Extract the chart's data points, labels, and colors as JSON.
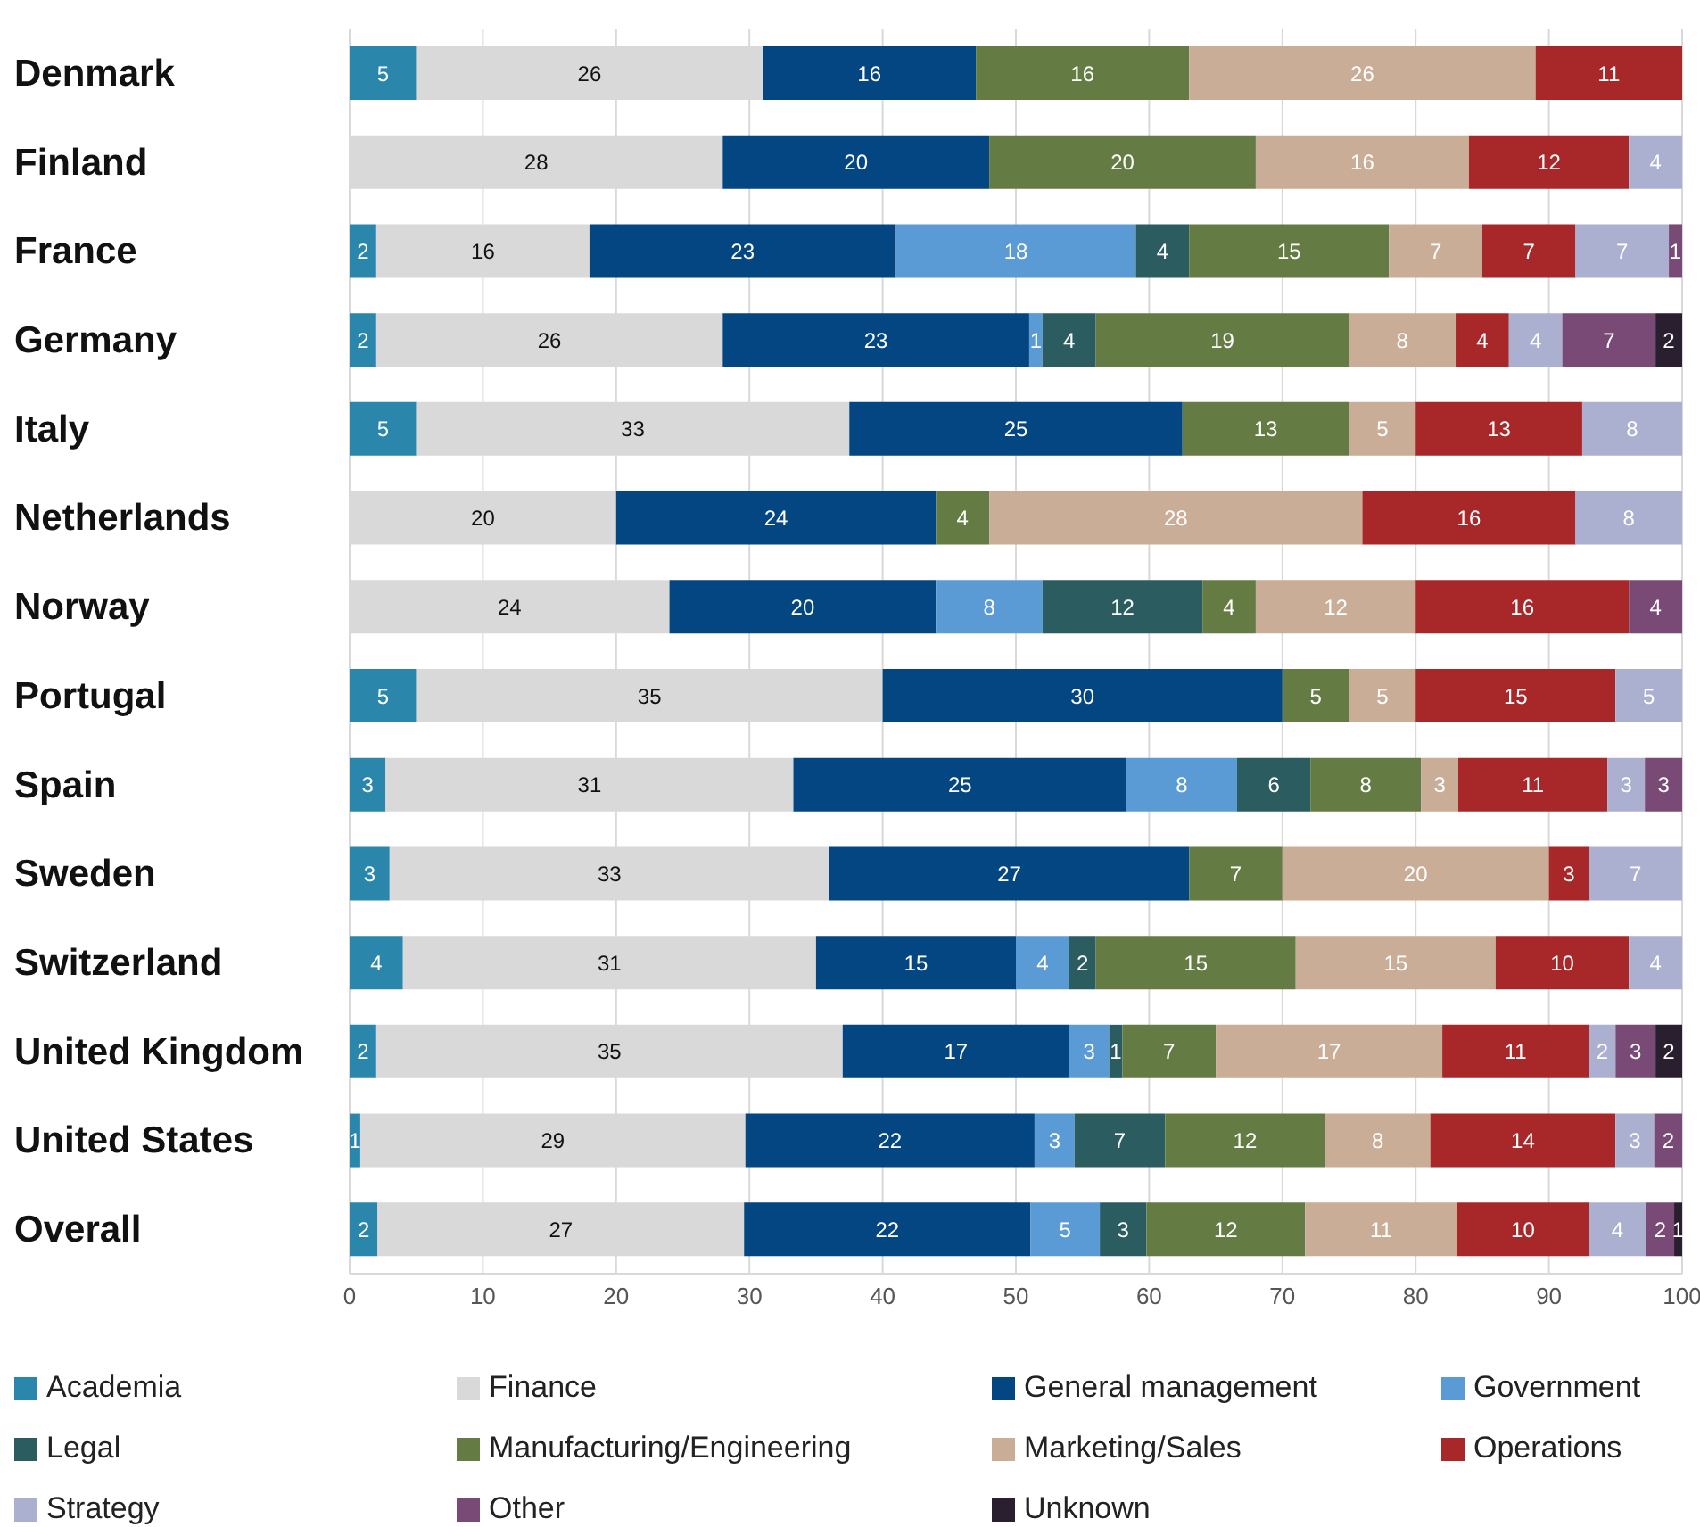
{
  "chart_data": {
    "type": "bar",
    "orientation": "horizontal",
    "stacked": true,
    "categories": [
      "Denmark",
      "Finland",
      "France",
      "Germany",
      "Italy",
      "Netherlands",
      "Norway",
      "Portugal",
      "Spain",
      "Sweden",
      "Switzerland",
      "United Kingdom",
      "United States",
      "Overall"
    ],
    "series": [
      {
        "name": "Academia",
        "color": "#2a87ab",
        "values": [
          5,
          null,
          2,
          2,
          5,
          null,
          null,
          5,
          2.7,
          3,
          4,
          2,
          0.8,
          2.1
        ],
        "value_labels": [
          "5",
          null,
          "2",
          "2",
          "5",
          null,
          null,
          "5",
          "3",
          "3",
          "4",
          "2",
          "1",
          "2"
        ]
      },
      {
        "name": "Finance",
        "color": "#d9d9d9",
        "values": [
          26,
          28,
          16,
          26,
          32.5,
          20,
          24,
          35,
          30.6,
          33,
          31,
          35,
          28.9,
          27.5
        ],
        "value_labels": [
          "26",
          "28",
          "16",
          "26",
          "33",
          "20",
          "24",
          "35",
          "31",
          "33",
          "31",
          "35",
          "29",
          "27"
        ]
      },
      {
        "name": "General management",
        "color": "#034681",
        "values": [
          16,
          20,
          23,
          23,
          25,
          24,
          20,
          30,
          25,
          27,
          15,
          17,
          21.7,
          21.5
        ],
        "value_labels": [
          "16",
          "20",
          "23",
          "23",
          "25",
          "24",
          "20",
          "30",
          "25",
          "27",
          "15",
          "17",
          "22",
          "22"
        ]
      },
      {
        "name": "Government",
        "color": "#5b9bd5",
        "values": [
          null,
          null,
          18,
          1,
          null,
          null,
          8,
          null,
          8.3,
          null,
          4,
          3,
          3.0,
          5.2
        ],
        "value_labels": [
          null,
          null,
          "18",
          "1",
          null,
          null,
          "8",
          null,
          "8",
          null,
          "4",
          "3",
          "3",
          "5"
        ]
      },
      {
        "name": "Legal",
        "color": "#2a5c60",
        "values": [
          null,
          null,
          4,
          4,
          null,
          null,
          12,
          null,
          5.5,
          null,
          2,
          1,
          6.8,
          3.5
        ],
        "value_labels": [
          null,
          null,
          "4",
          "4",
          null,
          null,
          "12",
          null,
          "6",
          null,
          "2",
          "1",
          "7",
          "3"
        ]
      },
      {
        "name": "Manufacturing/Engineering",
        "color": "#647c43",
        "values": [
          16,
          20,
          15,
          19,
          12.5,
          4,
          4,
          5,
          8.3,
          7,
          15,
          7,
          12.0,
          11.9
        ],
        "value_labels": [
          "16",
          "20",
          "15",
          "19",
          "13",
          "4",
          "4",
          "5",
          "8",
          "7",
          "15",
          "7",
          "12",
          "12"
        ]
      },
      {
        "name": "Marketing/Sales",
        "color": "#c9ad97",
        "values": [
          26,
          16,
          7,
          8,
          5,
          28,
          12,
          5,
          2.8,
          20,
          15,
          17,
          7.9,
          11.4
        ],
        "value_labels": [
          "26",
          "16",
          "7",
          "8",
          "5",
          "28",
          "12",
          "5",
          "3",
          "20",
          "15",
          "17",
          "8",
          "11"
        ]
      },
      {
        "name": "Operations",
        "color": "#a8282a",
        "values": [
          11,
          12,
          7,
          4,
          12.5,
          16,
          16,
          15,
          11.2,
          3,
          10,
          11,
          13.9,
          9.9
        ],
        "value_labels": [
          "11",
          "12",
          "7",
          "4",
          "13",
          "16",
          "16",
          "15",
          "11",
          "3",
          "10",
          "11",
          "14",
          "10"
        ]
      },
      {
        "name": "Strategy",
        "color": "#abb0d0",
        "values": [
          null,
          4,
          7,
          4,
          7.5,
          8,
          null,
          5,
          2.8,
          7,
          4,
          2,
          2.9,
          4.3
        ],
        "value_labels": [
          null,
          "4",
          "7",
          "4",
          "8",
          "8",
          null,
          "5",
          "3",
          "7",
          "4",
          "2",
          "3",
          "4"
        ]
      },
      {
        "name": "Other",
        "color": "#784a75",
        "values": [
          null,
          null,
          1,
          7,
          null,
          null,
          4,
          null,
          2.8,
          null,
          null,
          3,
          2.1,
          2.1
        ],
        "value_labels": [
          null,
          null,
          "1",
          "7",
          null,
          null,
          "4",
          null,
          "3",
          null,
          null,
          "3",
          "2",
          "2"
        ]
      },
      {
        "name": "Unknown",
        "color": "#2a1f2e",
        "values": [
          null,
          null,
          null,
          2,
          null,
          null,
          null,
          null,
          null,
          null,
          null,
          2,
          null,
          0.6
        ],
        "value_labels": [
          null,
          null,
          null,
          "2",
          null,
          null,
          null,
          null,
          null,
          null,
          null,
          "2",
          null,
          "1"
        ]
      }
    ],
    "xlim": [
      0,
      100
    ],
    "xticks": [
      0,
      10,
      20,
      30,
      40,
      50,
      60,
      70,
      80,
      90,
      100
    ],
    "grid": "x",
    "legend": "bottom"
  }
}
